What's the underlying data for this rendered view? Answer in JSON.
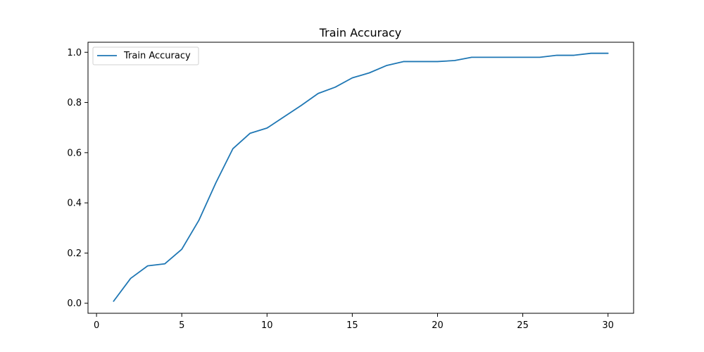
{
  "chart_data": {
    "type": "line",
    "title": "Train Accuracy",
    "xlabel": "",
    "ylabel": "",
    "xlim": [
      -0.5,
      31.5
    ],
    "ylim": [
      -0.04,
      1.04
    ],
    "x_ticks": [
      0,
      5,
      10,
      15,
      20,
      25,
      30
    ],
    "y_ticks": [
      0.0,
      0.2,
      0.4,
      0.6,
      0.8,
      1.0
    ],
    "x_tick_labels": [
      "0",
      "5",
      "10",
      "15",
      "20",
      "25",
      "30"
    ],
    "y_tick_labels": [
      "0.0",
      "0.2",
      "0.4",
      "0.6",
      "0.8",
      "1.0"
    ],
    "grid": false,
    "legend": {
      "position": "upper-left",
      "entries": [
        "Train Accuracy"
      ]
    },
    "series": [
      {
        "name": "Train Accuracy",
        "color": "#1f77b4",
        "x": [
          1,
          2,
          3,
          4,
          5,
          6,
          7,
          8,
          9,
          10,
          11,
          12,
          13,
          14,
          15,
          16,
          17,
          18,
          19,
          20,
          21,
          22,
          23,
          24,
          25,
          26,
          27,
          28,
          29,
          30
        ],
        "y": [
          0.008,
          0.099,
          0.149,
          0.157,
          0.215,
          0.33,
          0.48,
          0.616,
          0.677,
          0.698,
          0.743,
          0.788,
          0.836,
          0.861,
          0.898,
          0.918,
          0.947,
          0.963,
          0.963,
          0.963,
          0.967,
          0.98,
          0.98,
          0.98,
          0.98,
          0.98,
          0.988,
          0.988,
          0.996,
          0.996
        ]
      }
    ]
  }
}
